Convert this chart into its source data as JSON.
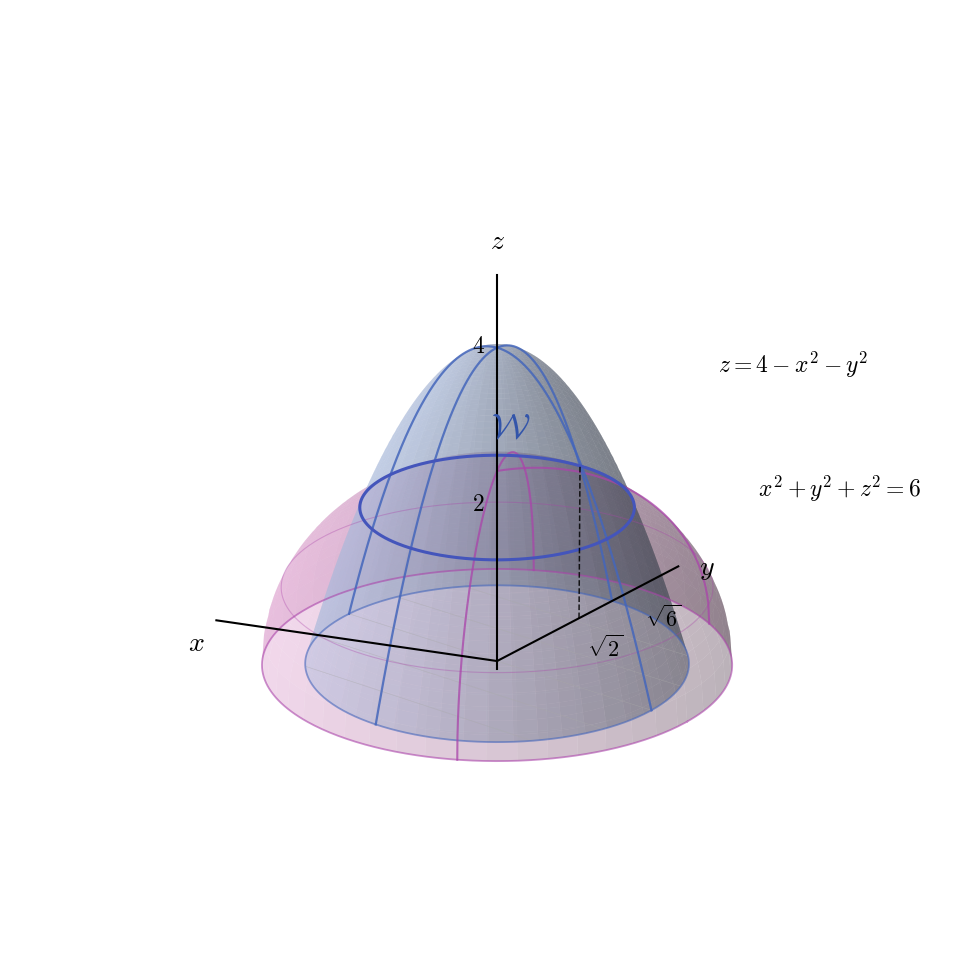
{
  "paraboloid_color": "#aabbdd",
  "paraboloid_alpha": 0.45,
  "hemisphere_color": "#dd99cc",
  "hemisphere_alpha": 0.38,
  "intersection_color": "#4455bb",
  "intersection_color2": "#884499",
  "paraboloid_edge_color": "#4466bb",
  "hemisphere_edge_color": "#aa44aa",
  "background_color": "#ffffff",
  "figsize": [
    9.68,
    9.68
  ],
  "dpi": 100,
  "elev": 22,
  "azim": -52
}
